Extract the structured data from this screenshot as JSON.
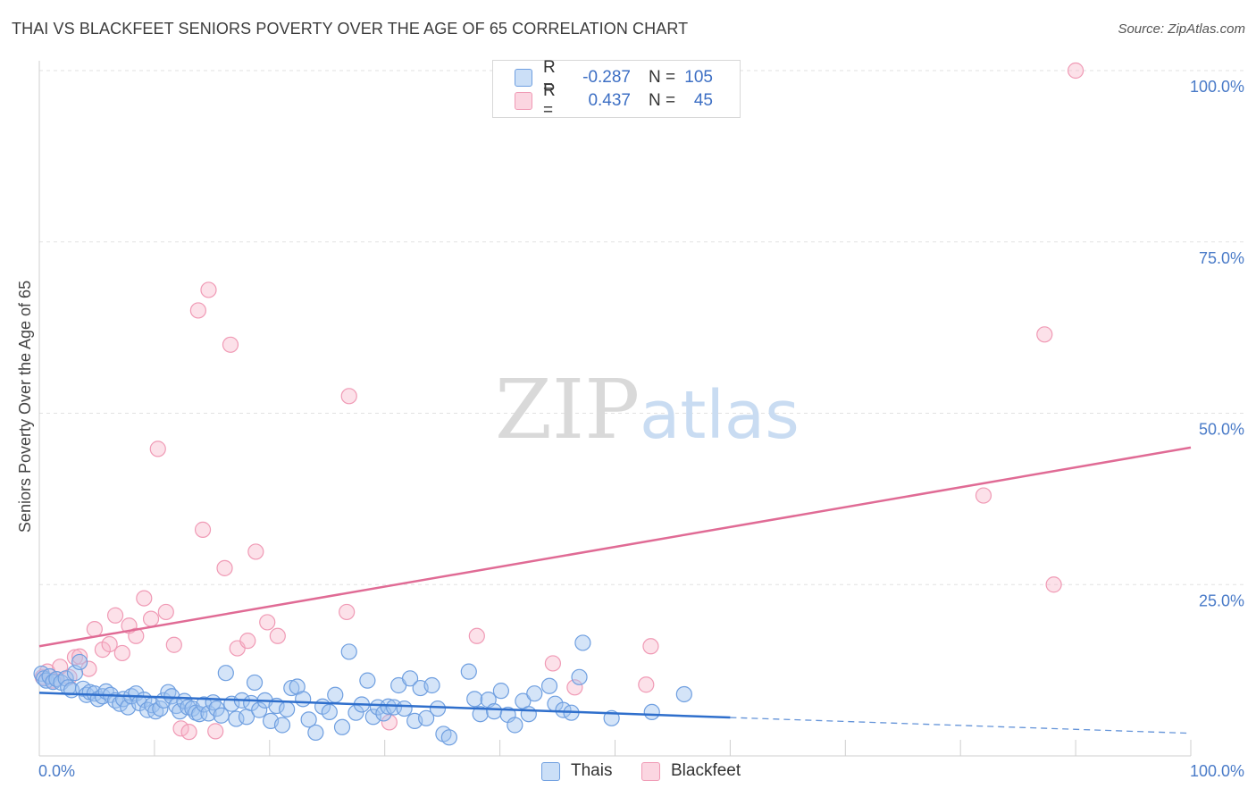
{
  "header": {
    "title": "THAI VS BLACKFEET SENIORS POVERTY OVER THE AGE OF 65 CORRELATION CHART",
    "source": "Source: ZipAtlas.com"
  },
  "watermark": {
    "zip": "ZIP",
    "atlas": "atlas"
  },
  "legend": {
    "rows": [
      {
        "r_label": "R =",
        "r_value": "-0.287",
        "n_label": "N =",
        "n_value": "105"
      },
      {
        "r_label": "R =",
        "r_value": "0.437",
        "n_label": "N =",
        "n_value": "45"
      }
    ]
  },
  "colors": {
    "thais_fill": "rgba(160,196,240,0.45)",
    "thais_stroke": "#6f9fe0",
    "thais_line": "#2f6fcc",
    "blackfeet_fill": "rgba(248,180,200,0.40)",
    "blackfeet_stroke": "#f09ab5",
    "blackfeet_line": "#e06b95",
    "grid": "#e2e2e2",
    "tick_text": "#4a7bc8"
  },
  "chart_data": {
    "type": "scatter",
    "title": "THAI VS BLACKFEET SENIORS POVERTY OVER THE AGE OF 65 CORRELATION CHART",
    "xlabel": "",
    "ylabel": "Seniors Poverty Over the Age of 65",
    "xlim": [
      0,
      100
    ],
    "ylim": [
      0,
      100
    ],
    "x_tick_labels": [
      "0.0%",
      "100.0%"
    ],
    "y_ticks": [
      {
        "value": 25,
        "label": "25.0%"
      },
      {
        "value": 50,
        "label": "50.0%"
      },
      {
        "value": 75,
        "label": "75.0%"
      },
      {
        "value": 100,
        "label": "100.0%"
      }
    ],
    "grid": true,
    "series": [
      {
        "name": "Thais",
        "r": -0.287,
        "n": 105,
        "trend": {
          "x_start": 0,
          "y_start": 9.2,
          "x_solid_end": 60,
          "y_solid_end": 5.6,
          "x_end": 100,
          "y_end": 3.3
        },
        "points": [
          [
            0.2,
            12.0
          ],
          [
            0.4,
            11.3
          ],
          [
            0.6,
            11.0
          ],
          [
            0.9,
            11.6
          ],
          [
            1.2,
            10.8
          ],
          [
            1.5,
            11.2
          ],
          [
            1.9,
            10.7
          ],
          [
            2.3,
            11.3
          ],
          [
            2.5,
            10.0
          ],
          [
            2.8,
            9.6
          ],
          [
            3.1,
            12.1
          ],
          [
            3.5,
            13.7
          ],
          [
            3.8,
            9.8
          ],
          [
            4.1,
            8.9
          ],
          [
            4.4,
            9.3
          ],
          [
            4.8,
            9.1
          ],
          [
            5.1,
            8.3
          ],
          [
            5.5,
            8.7
          ],
          [
            5.8,
            9.4
          ],
          [
            6.2,
            8.9
          ],
          [
            6.6,
            8.1
          ],
          [
            7.0,
            7.6
          ],
          [
            7.3,
            8.3
          ],
          [
            7.7,
            7.1
          ],
          [
            8.0,
            8.7
          ],
          [
            8.4,
            9.1
          ],
          [
            8.7,
            7.7
          ],
          [
            9.1,
            8.2
          ],
          [
            9.4,
            6.7
          ],
          [
            9.8,
            7.4
          ],
          [
            10.1,
            6.5
          ],
          [
            10.5,
            6.9
          ],
          [
            10.8,
            8.1
          ],
          [
            11.2,
            9.3
          ],
          [
            11.5,
            8.7
          ],
          [
            11.9,
            7.3
          ],
          [
            12.2,
            6.5
          ],
          [
            12.6,
            8.0
          ],
          [
            12.9,
            7.1
          ],
          [
            13.3,
            6.9
          ],
          [
            13.6,
            6.3
          ],
          [
            13.9,
            6.1
          ],
          [
            14.3,
            7.5
          ],
          [
            14.7,
            6.2
          ],
          [
            15.1,
            7.8
          ],
          [
            15.4,
            6.9
          ],
          [
            15.8,
            5.9
          ],
          [
            16.2,
            12.1
          ],
          [
            16.7,
            7.6
          ],
          [
            17.1,
            5.4
          ],
          [
            17.6,
            8.1
          ],
          [
            18.0,
            5.7
          ],
          [
            18.4,
            7.7
          ],
          [
            18.7,
            10.7
          ],
          [
            19.1,
            6.7
          ],
          [
            19.6,
            8.1
          ],
          [
            20.1,
            5.1
          ],
          [
            20.6,
            7.3
          ],
          [
            21.1,
            4.5
          ],
          [
            21.5,
            6.8
          ],
          [
            21.9,
            9.9
          ],
          [
            22.4,
            10.1
          ],
          [
            22.9,
            8.3
          ],
          [
            23.4,
            5.3
          ],
          [
            24.0,
            3.4
          ],
          [
            24.6,
            7.2
          ],
          [
            25.2,
            6.4
          ],
          [
            25.7,
            8.9
          ],
          [
            26.3,
            4.2
          ],
          [
            26.9,
            15.2
          ],
          [
            27.5,
            6.3
          ],
          [
            28.0,
            7.5
          ],
          [
            28.5,
            11.0
          ],
          [
            29.0,
            5.7
          ],
          [
            29.4,
            7.1
          ],
          [
            29.9,
            6.2
          ],
          [
            30.3,
            7.2
          ],
          [
            30.8,
            7.1
          ],
          [
            31.2,
            10.3
          ],
          [
            31.7,
            6.9
          ],
          [
            32.2,
            11.3
          ],
          [
            32.6,
            5.1
          ],
          [
            33.1,
            9.9
          ],
          [
            33.6,
            5.5
          ],
          [
            34.1,
            10.3
          ],
          [
            34.6,
            6.9
          ],
          [
            35.1,
            3.2
          ],
          [
            35.6,
            2.7
          ],
          [
            37.3,
            12.3
          ],
          [
            37.8,
            8.3
          ],
          [
            38.3,
            6.1
          ],
          [
            39.0,
            8.2
          ],
          [
            39.5,
            6.5
          ],
          [
            40.1,
            9.5
          ],
          [
            40.7,
            6.0
          ],
          [
            41.3,
            4.5
          ],
          [
            42.0,
            8.0
          ],
          [
            42.5,
            6.1
          ],
          [
            43.0,
            9.1
          ],
          [
            44.3,
            10.2
          ],
          [
            44.8,
            7.6
          ],
          [
            45.5,
            6.7
          ],
          [
            46.2,
            6.3
          ],
          [
            46.9,
            11.5
          ],
          [
            47.2,
            16.5
          ],
          [
            49.7,
            5.5
          ],
          [
            53.2,
            6.4
          ],
          [
            56.0,
            9.0
          ]
        ]
      },
      {
        "name": "Blackfeet",
        "r": 0.437,
        "n": 45,
        "trend": {
          "x_start": 0,
          "y_start": 16.0,
          "x_end": 100,
          "y_end": 45.0
        },
        "points": [
          [
            0.3,
            11.5
          ],
          [
            0.7,
            12.3
          ],
          [
            1.2,
            11.0
          ],
          [
            1.8,
            13.0
          ],
          [
            2.6,
            11.5
          ],
          [
            3.1,
            14.4
          ],
          [
            3.5,
            14.5
          ],
          [
            4.3,
            12.7
          ],
          [
            4.8,
            18.5
          ],
          [
            5.5,
            15.5
          ],
          [
            6.1,
            16.3
          ],
          [
            6.6,
            20.5
          ],
          [
            7.2,
            15.0
          ],
          [
            7.8,
            19.0
          ],
          [
            8.4,
            17.5
          ],
          [
            9.1,
            23.0
          ],
          [
            9.7,
            20.0
          ],
          [
            10.3,
            44.8
          ],
          [
            11.0,
            21.0
          ],
          [
            11.7,
            16.2
          ],
          [
            12.3,
            4.0
          ],
          [
            13.0,
            3.5
          ],
          [
            13.8,
            65.0
          ],
          [
            14.2,
            33.0
          ],
          [
            14.7,
            68.0
          ],
          [
            15.3,
            3.6
          ],
          [
            16.1,
            27.4
          ],
          [
            16.6,
            60.0
          ],
          [
            17.2,
            15.7
          ],
          [
            18.1,
            16.8
          ],
          [
            18.8,
            29.8
          ],
          [
            19.8,
            19.5
          ],
          [
            20.7,
            17.5
          ],
          [
            26.7,
            21.0
          ],
          [
            26.9,
            52.5
          ],
          [
            30.4,
            4.9
          ],
          [
            38.0,
            17.5
          ],
          [
            44.6,
            13.5
          ],
          [
            46.5,
            10.0
          ],
          [
            52.7,
            10.4
          ],
          [
            53.1,
            16.0
          ],
          [
            82.0,
            38.0
          ],
          [
            87.3,
            61.5
          ],
          [
            88.1,
            25.0
          ],
          [
            90.0,
            100.0
          ]
        ]
      }
    ]
  },
  "bottom_legend": {
    "items": [
      {
        "label": "Thais"
      },
      {
        "label": "Blackfeet"
      }
    ]
  }
}
